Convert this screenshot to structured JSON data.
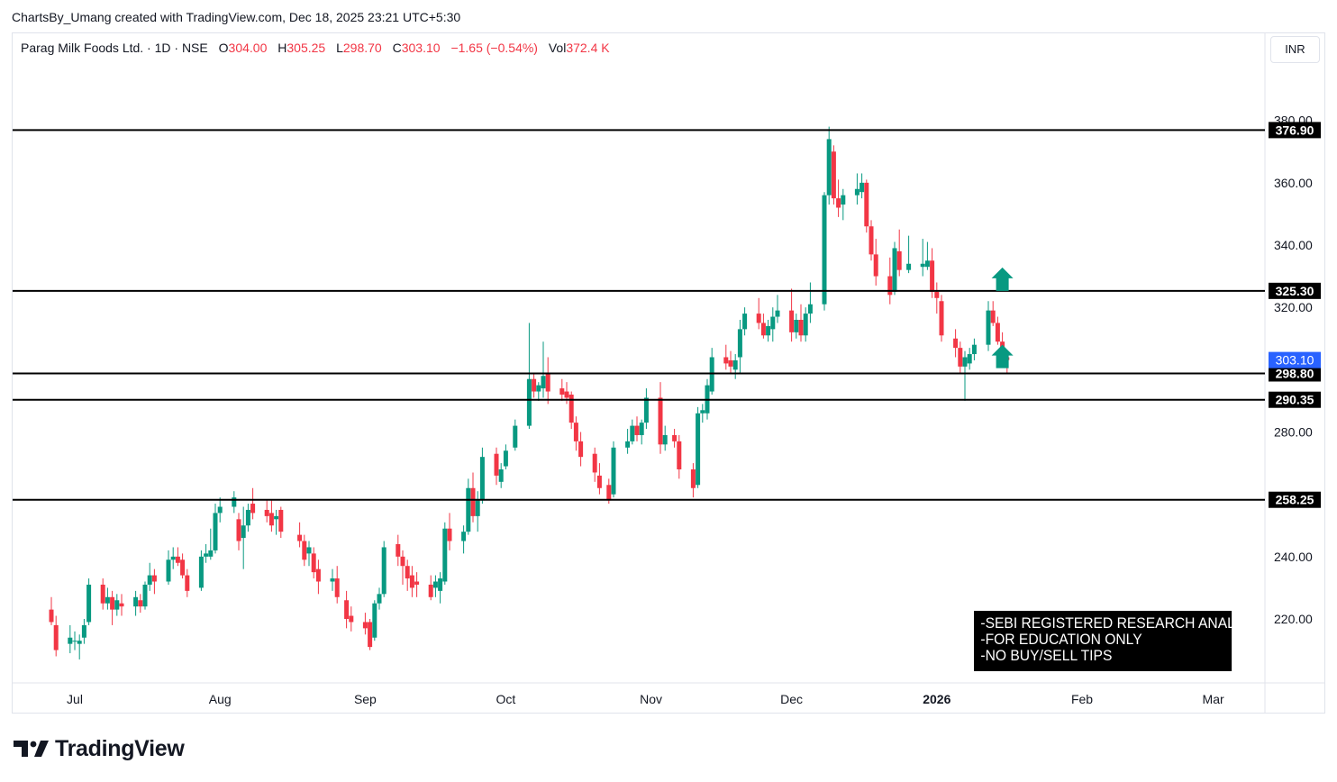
{
  "credit": "ChartsBy_Umang created with TradingView.com, Dec 18, 2025 23:21 UTC+5:30",
  "legend": {
    "symbol": "Parag Milk Foods Ltd. · 1D · NSE",
    "o_label": "O",
    "o": "304.00",
    "h_label": "H",
    "h": "305.25",
    "l_label": "L",
    "l": "298.70",
    "c_label": "C",
    "c": "303.10",
    "change": "−1.65 (−0.54%)",
    "vol_label": "Vol",
    "vol": "372.4 K"
  },
  "currency": "INR",
  "notice": [
    "-SEBI REGISTERED RESEARCH ANALYST",
    "-FOR EDUCATION ONLY",
    "-NO BUY/SELL TIPS"
  ],
  "brand": "TradingView",
  "colors": {
    "up": "#089981",
    "down": "#f23645",
    "line": "#000000",
    "price_tag": "#2962ff",
    "arrow": "#089981"
  },
  "chart_data": {
    "type": "candlestick",
    "ylim": [
      202,
      382
    ],
    "y_ticks": [
      220,
      240,
      280,
      320,
      340,
      360,
      380
    ],
    "x_ticks": [
      {
        "label": "Jul",
        "day": 0,
        "bold": false
      },
      {
        "label": "Aug",
        "day": 31,
        "bold": false
      },
      {
        "label": "Sep",
        "day": 62,
        "bold": false
      },
      {
        "label": "Oct",
        "day": 92,
        "bold": false
      },
      {
        "label": "Nov",
        "day": 123,
        "bold": false
      },
      {
        "label": "Dec",
        "day": 153,
        "bold": false
      },
      {
        "label": "2026",
        "day": 184,
        "bold": true
      },
      {
        "label": "Feb",
        "day": 215,
        "bold": false
      },
      {
        "label": "Mar",
        "day": 243,
        "bold": false
      }
    ],
    "levels": [
      376.9,
      325.3,
      298.8,
      290.35,
      258.25
    ],
    "level_labels": [
      "376.90",
      "325.30",
      "298.80",
      "290.35",
      "258.25"
    ],
    "last_price": 303.1,
    "last_price_label": "303.10",
    "arrows": [
      {
        "day": 198,
        "price": 325.3,
        "direction": "up"
      },
      {
        "day": 198,
        "price": 300.5,
        "direction": "up"
      }
    ],
    "candles": [
      {
        "d": "2025-06-26",
        "o": 223,
        "h": 227,
        "l": 218,
        "c": 219
      },
      {
        "d": "2025-06-27",
        "o": 218,
        "h": 221,
        "l": 208,
        "c": 210
      },
      {
        "d": "2025-06-30",
        "o": 212,
        "h": 218,
        "l": 209,
        "c": 214
      },
      {
        "d": "2025-07-01",
        "o": 213,
        "h": 216,
        "l": 210,
        "c": 213
      },
      {
        "d": "2025-07-02",
        "o": 212,
        "h": 215,
        "l": 207,
        "c": 213
      },
      {
        "d": "2025-07-03",
        "o": 214,
        "h": 220,
        "l": 212,
        "c": 218
      },
      {
        "d": "2025-07-04",
        "o": 219,
        "h": 233,
        "l": 218,
        "c": 231
      },
      {
        "d": "2025-07-07",
        "o": 231,
        "h": 233,
        "l": 223,
        "c": 225
      },
      {
        "d": "2025-07-08",
        "o": 225,
        "h": 230,
        "l": 223,
        "c": 227
      },
      {
        "d": "2025-07-09",
        "o": 227,
        "h": 229,
        "l": 218,
        "c": 223
      },
      {
        "d": "2025-07-10",
        "o": 223,
        "h": 228,
        "l": 221,
        "c": 226
      },
      {
        "d": "2025-07-11",
        "o": 225,
        "h": 228,
        "l": 221,
        "c": 224
      },
      {
        "d": "2025-07-14",
        "o": 224,
        "h": 229,
        "l": 221,
        "c": 227
      },
      {
        "d": "2025-07-15",
        "o": 226,
        "h": 228,
        "l": 222,
        "c": 224
      },
      {
        "d": "2025-07-16",
        "o": 224,
        "h": 232,
        "l": 223,
        "c": 231
      },
      {
        "d": "2025-07-17",
        "o": 231,
        "h": 238,
        "l": 229,
        "c": 234
      },
      {
        "d": "2025-07-18",
        "o": 234,
        "h": 236,
        "l": 228,
        "c": 232
      },
      {
        "d": "2025-07-21",
        "o": 232,
        "h": 242,
        "l": 231,
        "c": 239
      },
      {
        "d": "2025-07-22",
        "o": 239,
        "h": 243,
        "l": 236,
        "c": 240
      },
      {
        "d": "2025-07-23",
        "o": 240,
        "h": 243,
        "l": 237,
        "c": 238
      },
      {
        "d": "2025-07-24",
        "o": 239,
        "h": 241,
        "l": 233,
        "c": 234
      },
      {
        "d": "2025-07-25",
        "o": 234,
        "h": 236,
        "l": 227,
        "c": 229
      },
      {
        "d": "2025-07-28",
        "o": 230,
        "h": 242,
        "l": 229,
        "c": 240
      },
      {
        "d": "2025-07-29",
        "o": 240,
        "h": 244,
        "l": 238,
        "c": 241
      },
      {
        "d": "2025-07-30",
        "o": 240,
        "h": 249,
        "l": 239,
        "c": 242
      },
      {
        "d": "2025-07-31",
        "o": 242,
        "h": 257,
        "l": 241,
        "c": 254
      },
      {
        "d": "2025-08-01",
        "o": 254,
        "h": 259,
        "l": 251,
        "c": 256
      },
      {
        "d": "2025-08-04",
        "o": 256,
        "h": 261,
        "l": 254,
        "c": 259
      },
      {
        "d": "2025-08-05",
        "o": 252,
        "h": 254,
        "l": 242,
        "c": 245
      },
      {
        "d": "2025-08-06",
        "o": 246,
        "h": 256,
        "l": 236,
        "c": 250
      },
      {
        "d": "2025-08-07",
        "o": 250,
        "h": 257,
        "l": 248,
        "c": 255
      },
      {
        "d": "2025-08-08",
        "o": 257,
        "h": 262,
        "l": 252,
        "c": 254
      },
      {
        "d": "2025-08-11",
        "o": 255,
        "h": 258,
        "l": 251,
        "c": 253
      },
      {
        "d": "2025-08-12",
        "o": 254,
        "h": 258,
        "l": 248,
        "c": 250
      },
      {
        "d": "2025-08-13",
        "o": 252,
        "h": 255,
        "l": 247,
        "c": 253
      },
      {
        "d": "2025-08-14",
        "o": 255,
        "h": 256,
        "l": 246,
        "c": 248
      },
      {
        "d": "2025-08-18",
        "o": 247,
        "h": 251,
        "l": 243,
        "c": 245
      },
      {
        "d": "2025-08-19",
        "o": 245,
        "h": 247,
        "l": 237,
        "c": 239
      },
      {
        "d": "2025-08-20",
        "o": 241,
        "h": 245,
        "l": 237,
        "c": 243
      },
      {
        "d": "2025-08-21",
        "o": 241,
        "h": 243,
        "l": 233,
        "c": 235
      },
      {
        "d": "2025-08-22",
        "o": 236,
        "h": 239,
        "l": 228,
        "c": 232
      },
      {
        "d": "2025-08-25",
        "o": 232,
        "h": 236,
        "l": 229,
        "c": 233
      },
      {
        "d": "2025-08-26",
        "o": 233,
        "h": 237,
        "l": 225,
        "c": 227
      },
      {
        "d": "2025-08-28",
        "o": 226,
        "h": 229,
        "l": 217,
        "c": 220
      },
      {
        "d": "2025-08-29",
        "o": 221,
        "h": 224,
        "l": 216,
        "c": 219
      },
      {
        "d": "2025-09-01",
        "o": 219,
        "h": 222,
        "l": 215,
        "c": 217
      },
      {
        "d": "2025-09-02",
        "o": 219,
        "h": 220,
        "l": 210,
        "c": 211
      },
      {
        "d": "2025-09-03",
        "o": 214,
        "h": 226,
        "l": 213,
        "c": 225
      },
      {
        "d": "2025-09-04",
        "o": 225,
        "h": 230,
        "l": 223,
        "c": 228
      },
      {
        "d": "2025-09-05",
        "o": 228,
        "h": 245,
        "l": 227,
        "c": 243
      },
      {
        "d": "2025-09-08",
        "o": 244,
        "h": 247,
        "l": 237,
        "c": 240
      },
      {
        "d": "2025-09-09",
        "o": 240,
        "h": 242,
        "l": 231,
        "c": 237
      },
      {
        "d": "2025-09-10",
        "o": 237,
        "h": 239,
        "l": 229,
        "c": 233
      },
      {
        "d": "2025-09-11",
        "o": 234,
        "h": 237,
        "l": 227,
        "c": 230
      },
      {
        "d": "2025-09-12",
        "o": 232,
        "h": 235,
        "l": 227,
        "c": 231
      },
      {
        "d": "2025-09-15",
        "o": 231,
        "h": 234,
        "l": 226,
        "c": 227
      },
      {
        "d": "2025-09-16",
        "o": 230,
        "h": 234,
        "l": 227,
        "c": 232
      },
      {
        "d": "2025-09-17",
        "o": 229,
        "h": 235,
        "l": 225,
        "c": 233
      },
      {
        "d": "2025-09-18",
        "o": 232,
        "h": 251,
        "l": 231,
        "c": 249
      },
      {
        "d": "2025-09-19",
        "o": 249,
        "h": 254,
        "l": 242,
        "c": 245
      },
      {
        "d": "2025-09-22",
        "o": 245,
        "h": 250,
        "l": 241,
        "c": 248
      },
      {
        "d": "2025-09-23",
        "o": 248,
        "h": 265,
        "l": 247,
        "c": 262
      },
      {
        "d": "2025-09-24",
        "o": 262,
        "h": 267,
        "l": 251,
        "c": 253
      },
      {
        "d": "2025-09-25",
        "o": 253,
        "h": 261,
        "l": 248,
        "c": 258
      },
      {
        "d": "2025-09-26",
        "o": 258,
        "h": 275,
        "l": 257,
        "c": 272
      },
      {
        "d": "2025-09-29",
        "o": 273,
        "h": 275,
        "l": 263,
        "c": 266
      },
      {
        "d": "2025-09-30",
        "o": 264,
        "h": 270,
        "l": 262,
        "c": 268
      },
      {
        "d": "2025-10-01",
        "o": 269,
        "h": 276,
        "l": 268,
        "c": 274
      },
      {
        "d": "2025-10-03",
        "o": 275,
        "h": 284,
        "l": 274,
        "c": 282
      },
      {
        "d": "2025-10-06",
        "o": 282,
        "h": 315,
        "l": 281,
        "c": 297
      },
      {
        "d": "2025-10-07",
        "o": 297,
        "h": 299,
        "l": 291,
        "c": 293
      },
      {
        "d": "2025-10-08",
        "o": 293,
        "h": 296,
        "l": 290,
        "c": 295
      },
      {
        "d": "2025-10-09",
        "o": 294,
        "h": 309,
        "l": 291,
        "c": 298
      },
      {
        "d": "2025-10-10",
        "o": 299,
        "h": 304,
        "l": 289,
        "c": 293
      },
      {
        "d": "2025-10-13",
        "o": 294,
        "h": 297,
        "l": 290,
        "c": 292
      },
      {
        "d": "2025-10-14",
        "o": 293,
        "h": 296,
        "l": 289,
        "c": 291
      },
      {
        "d": "2025-10-15",
        "o": 292,
        "h": 293,
        "l": 281,
        "c": 283
      },
      {
        "d": "2025-10-16",
        "o": 283,
        "h": 285,
        "l": 274,
        "c": 277
      },
      {
        "d": "2025-10-17",
        "o": 277,
        "h": 280,
        "l": 269,
        "c": 272
      },
      {
        "d": "2025-10-20",
        "o": 273,
        "h": 275,
        "l": 264,
        "c": 267
      },
      {
        "d": "2025-10-21",
        "o": 266,
        "h": 270,
        "l": 260,
        "c": 262
      },
      {
        "d": "2025-10-23",
        "o": 263,
        "h": 265,
        "l": 257,
        "c": 258
      },
      {
        "d": "2025-10-24",
        "o": 260,
        "h": 277,
        "l": 259,
        "c": 275
      },
      {
        "d": "2025-10-27",
        "o": 275,
        "h": 281,
        "l": 273,
        "c": 277
      },
      {
        "d": "2025-10-28",
        "o": 277,
        "h": 284,
        "l": 276,
        "c": 282
      },
      {
        "d": "2025-10-29",
        "o": 282,
        "h": 285,
        "l": 277,
        "c": 279
      },
      {
        "d": "2025-10-30",
        "o": 279,
        "h": 284,
        "l": 276,
        "c": 283
      },
      {
        "d": "2025-10-31",
        "o": 283,
        "h": 294,
        "l": 281,
        "c": 291
      },
      {
        "d": "2025-11-03",
        "o": 291,
        "h": 296,
        "l": 273,
        "c": 276
      },
      {
        "d": "2025-11-04",
        "o": 276,
        "h": 282,
        "l": 274,
        "c": 279
      },
      {
        "d": "2025-11-06",
        "o": 279,
        "h": 281,
        "l": 275,
        "c": 277
      },
      {
        "d": "2025-11-07",
        "o": 277,
        "h": 279,
        "l": 265,
        "c": 268
      },
      {
        "d": "2025-11-10",
        "o": 268,
        "h": 270,
        "l": 259,
        "c": 262
      },
      {
        "d": "2025-11-11",
        "o": 263,
        "h": 288,
        "l": 262,
        "c": 286
      },
      {
        "d": "2025-11-12",
        "o": 286,
        "h": 289,
        "l": 283,
        "c": 287
      },
      {
        "d": "2025-11-13",
        "o": 286,
        "h": 297,
        "l": 284,
        "c": 295
      },
      {
        "d": "2025-11-14",
        "o": 293,
        "h": 307,
        "l": 292,
        "c": 304
      },
      {
        "d": "2025-11-17",
        "o": 304,
        "h": 308,
        "l": 300,
        "c": 302
      },
      {
        "d": "2025-11-18",
        "o": 303,
        "h": 306,
        "l": 299,
        "c": 301
      },
      {
        "d": "2025-11-19",
        "o": 300,
        "h": 305,
        "l": 297,
        "c": 303
      },
      {
        "d": "2025-11-20",
        "o": 304,
        "h": 316,
        "l": 299,
        "c": 313
      },
      {
        "d": "2025-11-21",
        "o": 313,
        "h": 320,
        "l": 311,
        "c": 318
      },
      {
        "d": "2025-11-24",
        "o": 318,
        "h": 323,
        "l": 313,
        "c": 315
      },
      {
        "d": "2025-11-25",
        "o": 315,
        "h": 318,
        "l": 310,
        "c": 311
      },
      {
        "d": "2025-11-26",
        "o": 311,
        "h": 316,
        "l": 309,
        "c": 314
      },
      {
        "d": "2025-11-27",
        "o": 313,
        "h": 320,
        "l": 309,
        "c": 317
      },
      {
        "d": "2025-11-28",
        "o": 317,
        "h": 324,
        "l": 315,
        "c": 319
      },
      {
        "d": "2025-12-01",
        "o": 319,
        "h": 326,
        "l": 309,
        "c": 312
      },
      {
        "d": "2025-12-02",
        "o": 312,
        "h": 318,
        "l": 310,
        "c": 316
      },
      {
        "d": "2025-12-03",
        "o": 316,
        "h": 321,
        "l": 309,
        "c": 311
      },
      {
        "d": "2025-12-04",
        "o": 311,
        "h": 320,
        "l": 309,
        "c": 318
      },
      {
        "d": "2025-12-05",
        "o": 318,
        "h": 328,
        "l": 315,
        "c": 321
      },
      {
        "d": "2025-12-08",
        "o": 321,
        "h": 357,
        "l": 319,
        "c": 356
      },
      {
        "d": "2025-12-09",
        "o": 356,
        "h": 378,
        "l": 353,
        "c": 374
      },
      {
        "d": "2025-12-10",
        "o": 370,
        "h": 372,
        "l": 353,
        "c": 355
      },
      {
        "d": "2025-12-11",
        "o": 355,
        "h": 361,
        "l": 349,
        "c": 352
      },
      {
        "d": "2025-12-12",
        "o": 353,
        "h": 358,
        "l": 348,
        "c": 356
      },
      {
        "d": "2025-12-15",
        "o": 356,
        "h": 363,
        "l": 353,
        "c": 358
      },
      {
        "d": "2025-12-16",
        "o": 357,
        "h": 363,
        "l": 355,
        "c": 360
      },
      {
        "d": "2025-12-17",
        "o": 360,
        "h": 361,
        "l": 344,
        "c": 346
      },
      {
        "d": "2025-12-18",
        "o": 346,
        "h": 348,
        "l": 335,
        "c": 337
      },
      {
        "d": "2025-12-19",
        "o": 337,
        "h": 342,
        "l": 327,
        "c": 330
      },
      {
        "d": "2025-12-22",
        "o": 330,
        "h": 336,
        "l": 321,
        "c": 324
      },
      {
        "d": "2025-12-23",
        "o": 325,
        "h": 341,
        "l": 324,
        "c": 339
      },
      {
        "d": "2025-12-24",
        "o": 338,
        "h": 345,
        "l": 330,
        "c": 332
      },
      {
        "d": "2025-12-26",
        "o": 332,
        "h": 343,
        "l": 331,
        "c": 334
      },
      {
        "d": "2025-12-29",
        "o": 333,
        "h": 342,
        "l": 330,
        "c": 334
      },
      {
        "d": "2025-12-30",
        "o": 333,
        "h": 341,
        "l": 332,
        "c": 335
      },
      {
        "d": "2025-12-31",
        "o": 335,
        "h": 339,
        "l": 323,
        "c": 325
      },
      {
        "d": "2026-01-01",
        "o": 325,
        "h": 328,
        "l": 318,
        "c": 323
      },
      {
        "d": "2026-01-02",
        "o": 322,
        "h": 324,
        "l": 309,
        "c": 311
      },
      {
        "d": "2026-01-05",
        "o": 310,
        "h": 313,
        "l": 304,
        "c": 307
      },
      {
        "d": "2026-01-06",
        "o": 307,
        "h": 309,
        "l": 299,
        "c": 301
      },
      {
        "d": "2026-01-07",
        "o": 301,
        "h": 306,
        "l": 290,
        "c": 304
      },
      {
        "d": "2026-01-08",
        "o": 302,
        "h": 307,
        "l": 300,
        "c": 305
      },
      {
        "d": "2026-01-09",
        "o": 305,
        "h": 310,
        "l": 303,
        "c": 308
      },
      {
        "d": "2026-01-12",
        "o": 308,
        "h": 322,
        "l": 306,
        "c": 319
      },
      {
        "d": "2026-01-13",
        "o": 319,
        "h": 322,
        "l": 314,
        "c": 315
      },
      {
        "d": "2026-01-14",
        "o": 315,
        "h": 317,
        "l": 308,
        "c": 309
      },
      {
        "d": "2026-01-15",
        "o": 309,
        "h": 312,
        "l": 304,
        "c": 305
      },
      {
        "d": "2026-01-16",
        "o": 304.0,
        "h": 305.25,
        "l": 298.7,
        "c": 303.1
      }
    ]
  }
}
